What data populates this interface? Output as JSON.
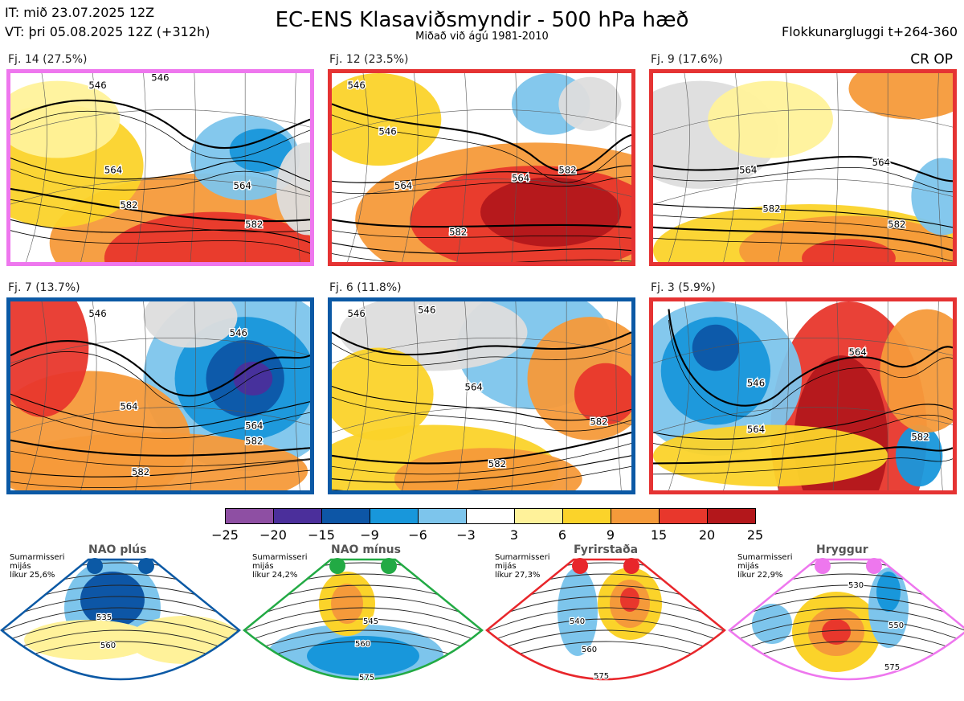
{
  "header": {
    "it": "IT: mið 23.07.2025 12Z",
    "vt": "VT: þri 05.08.2025 12Z  (+312h)",
    "title": "EC-ENS Klasaviðsmyndir - 500 hPa hæð",
    "subtitle": "Miðað við ágú 1981-2010",
    "window": "Flokkunargluggi t+264-360",
    "cr_op": "CR OP"
  },
  "panels": [
    {
      "label": "Fj. 14 (27.5%)",
      "border_color": "#ee77ee",
      "contours": [
        "546",
        "546",
        "564",
        "582",
        "582",
        "564"
      ]
    },
    {
      "label": "Fj. 12 (23.5%)",
      "border_color": "#e53333",
      "contours": [
        "546",
        "546",
        "564",
        "564",
        "582",
        "582"
      ]
    },
    {
      "label": "Fj. 9 (17.6%)",
      "border_color": "#e53333",
      "contours": [
        "564",
        "564",
        "582",
        "582"
      ]
    },
    {
      "label": "Fj. 7 (13.7%)",
      "border_color": "#0b59a5",
      "contours": [
        "546",
        "546",
        "564",
        "564",
        "582",
        "582"
      ]
    },
    {
      "label": "Fj. 6 (11.8%)",
      "border_color": "#0b59a5",
      "contours": [
        "546",
        "546",
        "564",
        "582",
        "582"
      ]
    },
    {
      "label": "Fj. 3 (5.9%)",
      "border_color": "#e53333",
      "contours": [
        "564",
        "546",
        "564",
        "582"
      ]
    }
  ],
  "colorbar": {
    "ticks": [
      "−25",
      "−20",
      "−15",
      "−9",
      "−6",
      "−3",
      "3",
      "6",
      "9",
      "15",
      "20",
      "25"
    ],
    "colors": [
      "#8e4fa3",
      "#4b2f9b",
      "#0d56a6",
      "#1897db",
      "#7dc5ec",
      "#ffffff",
      "#fff29a",
      "#fbd32a",
      "#f59a3a",
      "#e8372c",
      "#b3171b"
    ]
  },
  "regimes": [
    {
      "name": "NAO plús",
      "info": [
        "Sumarmisseri",
        "mijás",
        "líkur 25,6%"
      ],
      "color": "#0b59a5",
      "contours": [
        "535",
        "560"
      ]
    },
    {
      "name": "NAO mínus",
      "info": [
        "Sumarmisseri",
        "mijás",
        "líkur 24,2%"
      ],
      "color": "#22aa44",
      "contours": [
        "545",
        "560",
        "575"
      ]
    },
    {
      "name": "Fyrirstaða",
      "info": [
        "Sumarmisseri",
        "mijás",
        "líkur 27,3%"
      ],
      "color": "#e8262b",
      "contours": [
        "540",
        "560",
        "575"
      ]
    },
    {
      "name": "Hryggur",
      "info": [
        "Sumarmisseri",
        "mijás",
        "líkur 22,9%"
      ],
      "color": "#ee77ee",
      "contours": [
        "530",
        "550",
        "575"
      ]
    }
  ]
}
